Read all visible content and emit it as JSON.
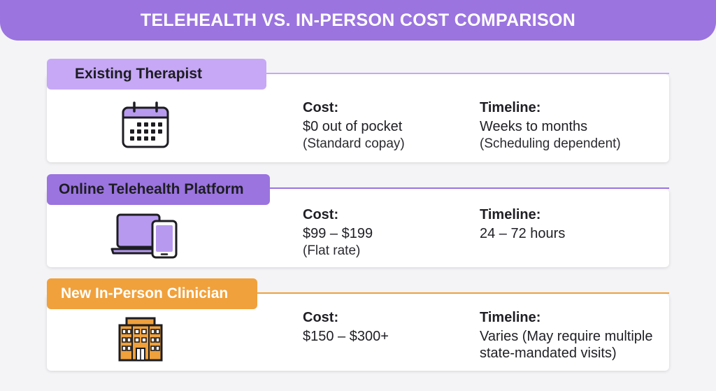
{
  "header": {
    "title": "TELEHEALTH VS. IN-PERSON COST COMPARISON"
  },
  "colors": {
    "purple": "#9b74e0",
    "lavender": "#c6a8f6",
    "orange": "#f0a13c"
  },
  "options": [
    {
      "name": "Existing Therapist",
      "icon": "calendar-icon",
      "cost_label": "Cost:",
      "cost_value": "$0 out of pocket",
      "cost_note": "(Standard copay)",
      "timeline_label": "Timeline:",
      "timeline_value": "Weeks to months",
      "timeline_note": "(Scheduling dependent)"
    },
    {
      "name": "Online Telehealth Platform",
      "icon": "devices-icon",
      "cost_label": "Cost:",
      "cost_value": "$99 – $199",
      "cost_note": "(Flat rate)",
      "timeline_label": "Timeline:",
      "timeline_value": "24 – 72 hours",
      "timeline_note": ""
    },
    {
      "name": "New In-Person Clinician",
      "icon": "building-icon",
      "cost_label": "Cost:",
      "cost_value": "$150 – $300+",
      "cost_note": "",
      "timeline_label": "Timeline:",
      "timeline_value": "Varies (May require multiple",
      "timeline_note": "state-mandated visits)"
    }
  ]
}
